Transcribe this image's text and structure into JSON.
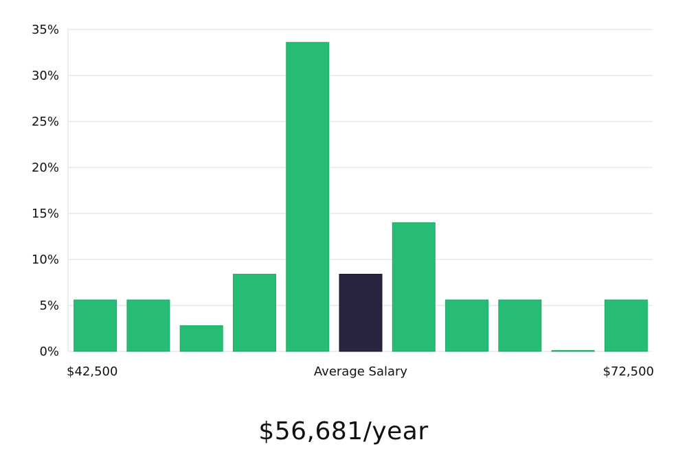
{
  "headline": "$56,681/year",
  "colors": {
    "bar": "#27bc75",
    "highlight": "#28243f",
    "grid": "#dddddd",
    "text": "#111111"
  },
  "chart_data": {
    "type": "bar",
    "title": "",
    "xlabel": "Average Salary",
    "ylabel": "",
    "x_min_label": "$42,500",
    "x_max_label": "$72,500",
    "ylim": [
      0,
      35
    ],
    "yticks": [
      0,
      5,
      10,
      15,
      20,
      25,
      30,
      35
    ],
    "ytick_labels": [
      "0%",
      "5%",
      "10%",
      "15%",
      "20%",
      "25%",
      "30%",
      "35%"
    ],
    "grid": true,
    "values": [
      5.6,
      5.6,
      2.8,
      8.4,
      33.6,
      8.4,
      14.0,
      5.6,
      5.6,
      0.1,
      5.6
    ],
    "highlight_index": 5
  }
}
